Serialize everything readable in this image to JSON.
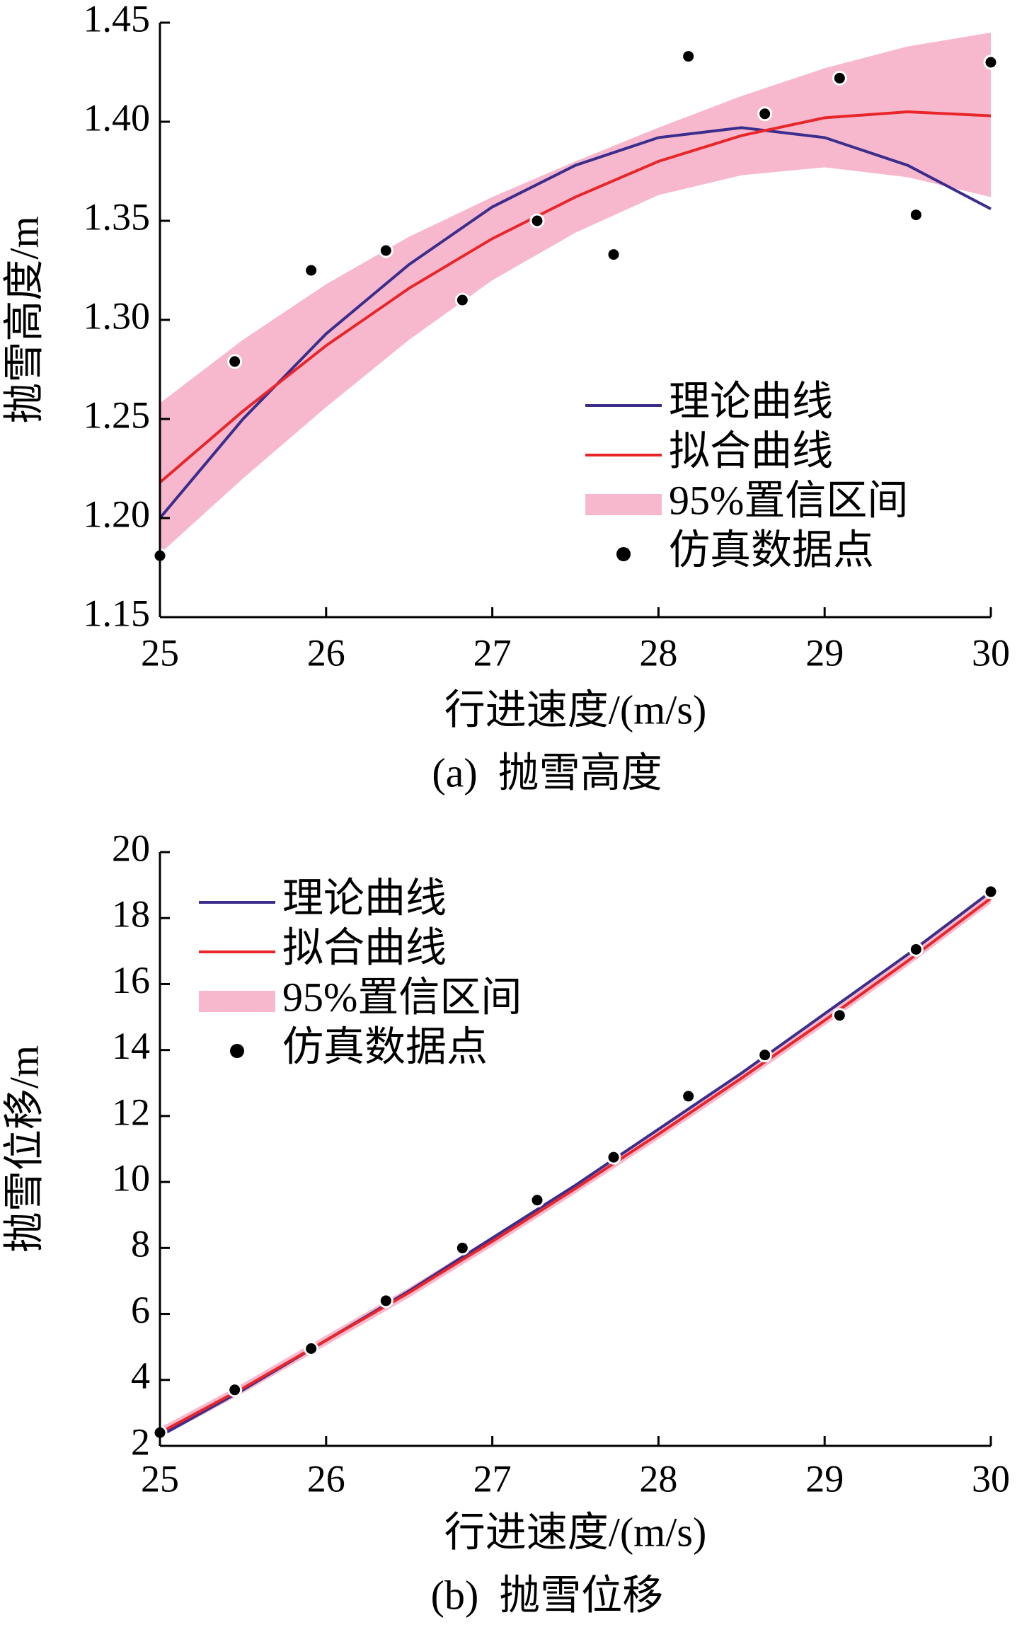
{
  "chart_data": [
    {
      "type": "line",
      "caption": "(a)  抛雪高度",
      "x_label": "行进速度/(m/s)",
      "y_label": "抛雪高度/m",
      "xlim": [
        25,
        30
      ],
      "xticks": [
        25,
        26,
        27,
        28,
        29,
        30
      ],
      "ylim": [
        1.15,
        1.45
      ],
      "yticks": [
        1.15,
        {
          "value": 1.2,
          "label": "1.20"
        },
        1.25,
        {
          "value": 1.3,
          "label": "1.30"
        },
        1.35,
        {
          "value": 1.4,
          "label": "1.40"
        },
        1.45
      ],
      "legend": "lower right",
      "x": [
        25,
        25.5,
        26,
        26.5,
        27,
        27.5,
        28,
        28.5,
        29,
        29.5,
        30
      ],
      "series": [
        {
          "name": "理论曲线",
          "type": "line",
          "color": "#3a2d8c",
          "values": [
            1.2,
            1.25,
            1.293,
            1.328,
            1.357,
            1.378,
            1.392,
            1.397,
            1.392,
            1.378,
            1.356
          ]
        },
        {
          "name": "拟合曲线",
          "type": "line",
          "color": "#e8262a",
          "values": [
            1.218,
            1.254,
            1.287,
            1.316,
            1.341,
            1.362,
            1.38,
            1.393,
            1.402,
            1.405,
            1.403
          ]
        },
        {
          "name": "95%置信区间",
          "type": "band",
          "color": "#f7b8cd",
          "lower": [
            1.182,
            1.22,
            1.256,
            1.29,
            1.32,
            1.344,
            1.363,
            1.373,
            1.377,
            1.372,
            1.362
          ],
          "upper": [
            1.258,
            1.29,
            1.318,
            1.342,
            1.362,
            1.38,
            1.397,
            1.413,
            1.427,
            1.438,
            1.445
          ]
        },
        {
          "name": "仿真数据点",
          "type": "scatter",
          "color": "#000000",
          "x": [
            25,
            25.45,
            25.91,
            26.36,
            26.82,
            27.27,
            27.73,
            28.18,
            28.64,
            29.09,
            29.55,
            30
          ],
          "values": [
            1.181,
            1.279,
            1.325,
            1.335,
            1.31,
            1.35,
            1.333,
            1.433,
            1.404,
            1.422,
            1.353,
            1.43
          ]
        }
      ]
    },
    {
      "type": "line",
      "caption": "(b)  抛雪位移",
      "x_label": "行进速度/(m/s)",
      "y_label": "抛雪位移/m",
      "xlim": [
        25,
        30
      ],
      "xticks": [
        25,
        26,
        27,
        28,
        29,
        30
      ],
      "ylim": [
        2,
        20
      ],
      "yticks": [
        2,
        4,
        6,
        8,
        10,
        12,
        14,
        16,
        18,
        20
      ],
      "legend": "upper left",
      "x": [
        25,
        25.5,
        26,
        26.5,
        27,
        27.5,
        28,
        28.5,
        29,
        29.5,
        30
      ],
      "series": [
        {
          "name": "理论曲线",
          "type": "line",
          "color": "#3a2d8c",
          "values": [
            2.3,
            3.7,
            5.2,
            6.7,
            8.3,
            9.9,
            11.6,
            13.3,
            15.1,
            16.9,
            18.8
          ]
        },
        {
          "name": "拟合曲线",
          "type": "line",
          "color": "#e8262a",
          "values": [
            2.4,
            3.75,
            5.2,
            6.65,
            8.2,
            9.8,
            11.45,
            13.15,
            14.9,
            16.7,
            18.6
          ]
        },
        {
          "name": "95%置信区间",
          "type": "band",
          "color": "#f7b8cd",
          "lower": [
            2.25,
            3.6,
            5.05,
            6.5,
            8.05,
            9.65,
            11.3,
            13.0,
            14.75,
            16.55,
            18.45
          ],
          "upper": [
            2.55,
            3.9,
            5.35,
            6.8,
            8.35,
            9.95,
            11.6,
            13.3,
            15.05,
            16.85,
            18.75
          ]
        },
        {
          "name": "仿真数据点",
          "type": "scatter",
          "color": "#000000",
          "x": [
            25,
            25.45,
            25.91,
            26.36,
            26.82,
            27.27,
            27.73,
            28.18,
            28.64,
            29.09,
            29.55,
            30
          ],
          "values": [
            2.4,
            3.7,
            4.95,
            6.4,
            8.0,
            9.45,
            10.75,
            12.6,
            13.85,
            15.05,
            17.05,
            18.8
          ]
        }
      ]
    }
  ]
}
